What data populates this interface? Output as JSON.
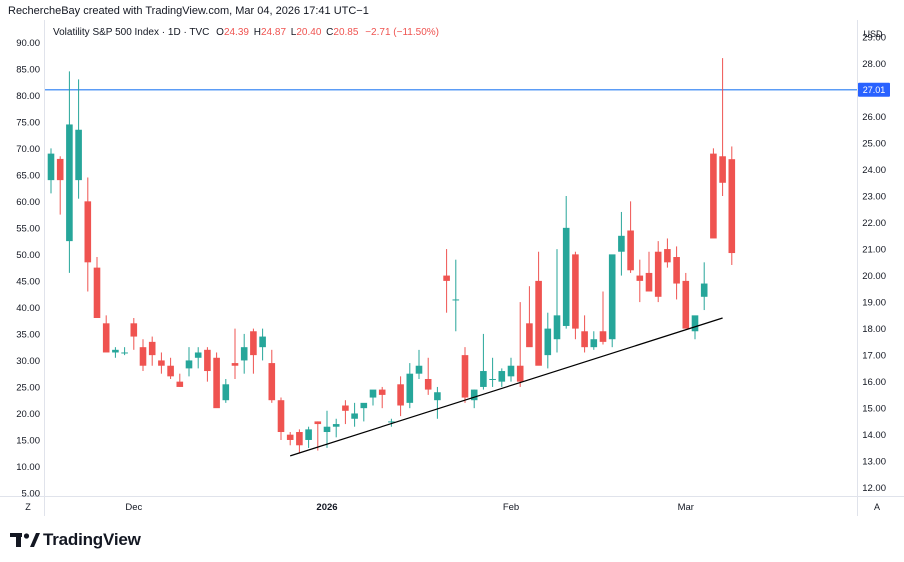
{
  "caption": "RechercheBay created with TradingView.com, Mar 04, 2026 17:41 UTC−1",
  "legend": {
    "symbol": "Volatility S&P 500 Index · 1D · TVC",
    "open_label": "O",
    "open": "24.39",
    "high_label": "H",
    "high": "24.87",
    "low_label": "L",
    "low": "20.40",
    "close_label": "C",
    "close": "20.85",
    "change": "−2.71 (−11.50%)"
  },
  "corner_left": "Z",
  "corner_right": "A",
  "currency": "USD",
  "brand": "TradingView",
  "colors": {
    "up": "#26a69a",
    "down": "#ef5350",
    "hline": "#5b9cf6",
    "trend": "#000000"
  },
  "chart_data": {
    "type": "candlestick",
    "title": "Volatility S&P 500 Index · 1D · TVC",
    "left_axis": {
      "min": 5,
      "max": 92.5,
      "ticks": [
        5,
        10,
        15,
        20,
        25,
        30,
        35,
        40,
        45,
        50,
        55,
        60,
        65,
        70,
        75,
        80,
        85,
        90
      ],
      "tick_labels": [
        "5.00",
        "10.00",
        "15.00",
        "20.00",
        "25.00",
        "30.00",
        "35.00",
        "40.00",
        "45.00",
        "50.00",
        "55.00",
        "60.00",
        "65.00",
        "70.00",
        "75.00",
        "80.00",
        "85.00",
        "90.00"
      ]
    },
    "right_axis": {
      "label": "USD",
      "min": 11.8,
      "max": 29.3,
      "ticks": [
        12,
        13,
        14,
        15,
        16,
        17,
        18,
        19,
        20,
        21,
        22,
        23,
        24,
        25,
        26,
        27,
        28,
        29
      ],
      "tick_labels": [
        "12.00",
        "13.00",
        "14.00",
        "15.00",
        "16.00",
        "17.00",
        "18.00",
        "19.00",
        "20.00",
        "21.00",
        "22.00",
        "23.00",
        "24.00",
        "25.00",
        "26.00",
        "27.00",
        "28.00",
        "29.00"
      ]
    },
    "x_ticks": [
      {
        "label": "Dec",
        "index": 9
      },
      {
        "label": "2026",
        "index": 30
      },
      {
        "label": "Feb",
        "index": 50
      },
      {
        "label": "Mar",
        "index": 69
      }
    ],
    "horizontal_line": {
      "value": 27.01,
      "label": "27.01"
    },
    "trendline": {
      "from": {
        "index": 26,
        "value": 13.2
      },
      "to": {
        "index": 73,
        "value": 18.4
      }
    },
    "ohlc": [
      [
        23.6,
        24.8,
        23.1,
        24.6
      ],
      [
        24.4,
        24.5,
        22.3,
        23.6
      ],
      [
        21.3,
        27.7,
        20.1,
        25.7
      ],
      [
        23.6,
        27.4,
        22.9,
        25.5
      ],
      [
        22.8,
        23.7,
        19.4,
        20.5
      ],
      [
        20.3,
        20.7,
        18.4,
        18.4
      ],
      [
        18.2,
        18.5,
        17.3,
        17.1
      ],
      [
        17.1,
        17.3,
        16.9,
        17.2
      ],
      [
        17.1,
        17.3,
        17.0,
        17.1
      ],
      [
        18.2,
        18.4,
        17.2,
        17.7
      ],
      [
        17.3,
        17.6,
        16.4,
        16.6
      ],
      [
        17.5,
        17.7,
        16.6,
        17.0
      ],
      [
        16.8,
        17.1,
        16.3,
        16.6
      ],
      [
        16.6,
        16.9,
        16.1,
        16.2
      ],
      [
        16.0,
        16.3,
        15.8,
        15.8
      ],
      [
        16.5,
        17.3,
        16.2,
        16.8
      ],
      [
        16.9,
        17.3,
        16.5,
        17.1
      ],
      [
        17.2,
        17.3,
        16.0,
        16.4
      ],
      [
        16.9,
        17.1,
        15.1,
        15.0
      ],
      [
        15.3,
        16.1,
        15.2,
        15.9
      ],
      [
        16.7,
        18.0,
        16.1,
        16.6
      ],
      [
        16.8,
        17.8,
        16.3,
        17.3
      ],
      [
        17.9,
        18.0,
        16.3,
        17.0
      ],
      [
        17.3,
        18.0,
        16.8,
        17.7
      ],
      [
        16.7,
        17.2,
        15.2,
        15.3
      ],
      [
        15.3,
        15.4,
        13.8,
        14.1
      ],
      [
        14.0,
        14.1,
        13.6,
        13.8
      ],
      [
        14.1,
        14.2,
        13.3,
        13.6
      ],
      [
        13.8,
        14.3,
        13.5,
        14.2
      ],
      [
        14.5,
        14.5,
        13.4,
        14.4
      ],
      [
        14.1,
        14.9,
        13.5,
        14.3
      ],
      [
        14.3,
        14.6,
        13.9,
        14.4
      ],
      [
        15.1,
        15.3,
        14.4,
        14.9
      ],
      [
        14.6,
        15.2,
        14.3,
        14.8
      ],
      [
        15.0,
        15.1,
        14.5,
        15.2
      ],
      [
        15.4,
        15.6,
        15.1,
        15.7
      ],
      [
        15.7,
        15.8,
        15.0,
        15.5
      ],
      [
        14.5,
        14.6,
        14.3,
        14.5
      ],
      [
        15.9,
        16.2,
        14.7,
        15.1
      ],
      [
        15.2,
        16.7,
        15.0,
        16.3
      ],
      [
        16.3,
        17.2,
        16.1,
        16.6
      ],
      [
        16.1,
        16.9,
        15.5,
        15.7
      ],
      [
        15.3,
        15.8,
        14.6,
        15.6
      ],
      [
        20.0,
        21.0,
        18.6,
        19.8
      ],
      [
        19.1,
        20.6,
        17.9,
        19.1
      ],
      [
        17.0,
        17.3,
        15.2,
        15.4
      ],
      [
        15.3,
        15.7,
        15.0,
        15.7
      ],
      [
        15.8,
        17.8,
        15.7,
        16.4
      ],
      [
        16.1,
        16.9,
        15.8,
        16.1
      ],
      [
        16.0,
        16.5,
        15.8,
        16.4
      ],
      [
        16.2,
        16.9,
        16.0,
        16.6
      ],
      [
        16.6,
        19.0,
        15.8,
        16.0
      ],
      [
        18.2,
        19.6,
        17.4,
        17.3
      ],
      [
        19.8,
        20.9,
        17.2,
        16.6
      ],
      [
        17.0,
        18.6,
        16.5,
        18.0
      ],
      [
        17.6,
        21.0,
        17.1,
        18.5
      ],
      [
        18.1,
        23.0,
        18.0,
        21.8
      ],
      [
        20.8,
        20.9,
        17.6,
        18.0
      ],
      [
        17.9,
        18.5,
        17.1,
        17.3
      ],
      [
        17.3,
        17.9,
        17.2,
        17.6
      ],
      [
        17.9,
        19.4,
        17.4,
        17.5
      ],
      [
        17.6,
        20.7,
        17.3,
        20.8
      ],
      [
        20.9,
        22.4,
        20.0,
        21.5
      ],
      [
        21.7,
        22.8,
        20.1,
        20.2
      ],
      [
        20.0,
        20.6,
        19.0,
        19.8
      ],
      [
        20.1,
        20.9,
        19.5,
        19.4
      ],
      [
        20.9,
        21.3,
        19.0,
        19.2
      ],
      [
        21.0,
        21.4,
        20.3,
        20.5
      ],
      [
        20.7,
        21.1,
        19.1,
        19.7
      ],
      [
        19.8,
        20.1,
        18.0,
        18.0
      ],
      [
        17.9,
        18.4,
        17.6,
        18.5
      ],
      [
        19.2,
        20.5,
        18.7,
        19.7
      ],
      [
        24.6,
        24.8,
        21.7,
        21.4
      ],
      [
        24.5,
        28.2,
        23.0,
        23.5
      ],
      [
        24.39,
        24.87,
        20.4,
        20.85
      ]
    ]
  }
}
